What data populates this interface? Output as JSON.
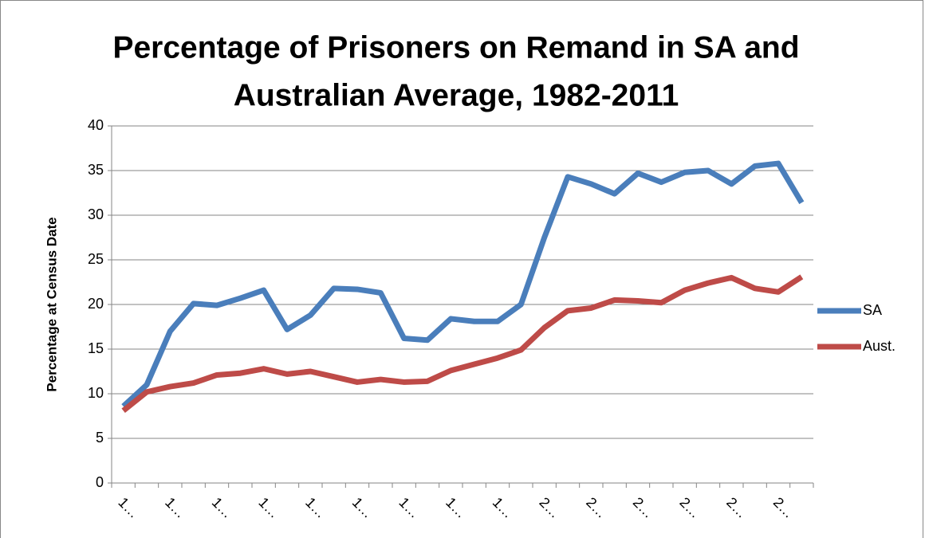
{
  "chart_data": {
    "type": "line",
    "title": [
      "Percentage of Prisoners on Remand in SA and",
      "Australian Average, 1982-2011"
    ],
    "y_label": "Percentage at Census Date",
    "categories": [
      "1…",
      null,
      "1…",
      null,
      "1…",
      null,
      "1…",
      null,
      "1…",
      null,
      "1…",
      null,
      "1…",
      null,
      "1…",
      null,
      "1…",
      null,
      "2…",
      null,
      "2…",
      null,
      "2…",
      null,
      "2…",
      null,
      "2…",
      null,
      "2…",
      null
    ],
    "series": [
      {
        "name": "SA",
        "color": "#4a7ebb",
        "values": [
          8.6,
          11,
          17,
          20.1,
          19.9,
          20.7,
          21.6,
          17.2,
          18.8,
          21.8,
          21.7,
          21.3,
          16.2,
          16.0,
          18.4,
          18.1,
          18.1,
          20.0,
          27.5,
          34.3,
          33.5,
          32.4,
          34.7,
          33.7,
          34.8,
          35.0,
          33.5,
          35.5,
          35.8,
          31.4
        ]
      },
      {
        "name": "Aust.",
        "color": "#be4b48",
        "values": [
          8.1,
          10.2,
          10.8,
          11.2,
          12.1,
          12.3,
          12.8,
          12.2,
          12.5,
          11.9,
          11.3,
          11.6,
          11.3,
          11.4,
          12.6,
          13.3,
          14.0,
          14.9,
          17.4,
          19.3,
          19.6,
          20.5,
          20.4,
          20.2,
          21.6,
          22.4,
          23.0,
          21.8,
          21.4,
          23.1
        ]
      }
    ],
    "ylim": [
      0,
      40
    ],
    "yticks": [
      0,
      5,
      10,
      15,
      20,
      25,
      30,
      35,
      40
    ],
    "grid": true,
    "legend": "right"
  }
}
